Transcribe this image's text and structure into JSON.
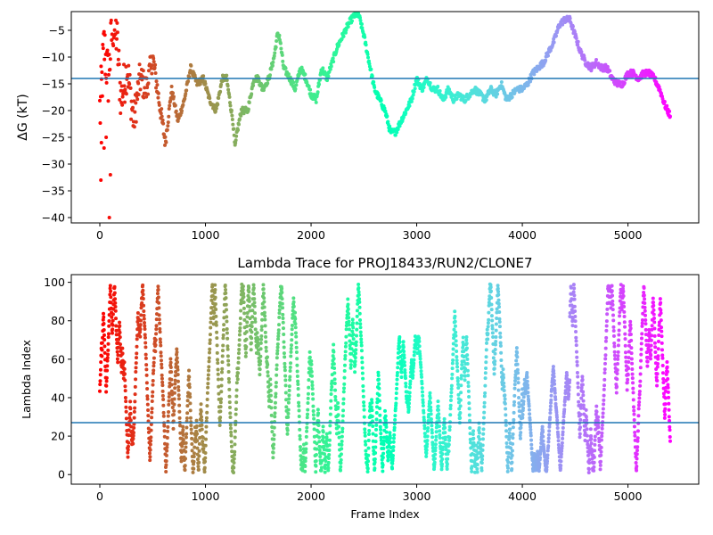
{
  "chart_data": [
    {
      "type": "scatter",
      "title": "",
      "xlabel": "",
      "ylabel": "ΔG (kT)",
      "xlim": [
        -270,
        5670
      ],
      "ylim": [
        -41,
        -1.5
      ],
      "xticks": [
        0,
        1000,
        2000,
        3000,
        4000,
        5000
      ],
      "xtick_labels": [
        "0",
        "1000",
        "2000",
        "3000",
        "4000",
        "5000"
      ],
      "yticks": [
        -40,
        -35,
        -30,
        -25,
        -20,
        -15,
        -10,
        -5
      ],
      "ytick_labels": [
        "−40",
        "−35",
        "−30",
        "−25",
        "−20",
        "−15",
        "−10",
        "−5"
      ],
      "hline": -14,
      "hline_color": "#1f77b4",
      "colormap": "rainbow",
      "series": [
        {
          "x": [
            5,
            40,
            80,
            120,
            160,
            200,
            260,
            320,
            380,
            440,
            500,
            560,
            620,
            680,
            740,
            800,
            860,
            920,
            980,
            1040,
            1100,
            1160,
            1200,
            1260,
            1280,
            1300,
            1340,
            1400,
            1460,
            1500,
            1540,
            1600,
            1650,
            1680,
            1700,
            1740,
            1800,
            1850,
            1900,
            1950,
            2000,
            2050,
            2100,
            2150,
            2200,
            2250,
            2300,
            2350,
            2380,
            2420,
            2450,
            2500,
            2560,
            2600,
            2650,
            2700,
            2750,
            2800,
            2850,
            2900,
            2950,
            3000,
            3050,
            3100,
            3150,
            3200,
            3250,
            3300,
            3350,
            3400,
            3450,
            3500,
            3550,
            3600,
            3650,
            3700,
            3750,
            3800,
            3850,
            3900,
            3950,
            4000,
            4050,
            4100,
            4150,
            4200,
            4250,
            4300,
            4350,
            4400,
            4450,
            4500,
            4550,
            4600,
            4650,
            4700,
            4750,
            4800,
            4850,
            4900,
            4950,
            5000,
            5050,
            5100,
            5150,
            5200,
            5250,
            5300,
            5350,
            5400
          ],
          "y": [
            -20,
            -8,
            -14,
            -4,
            -6,
            -18,
            -12,
            -22,
            -14,
            -16,
            -10,
            -18,
            -26,
            -16,
            -22,
            -18,
            -12,
            -15,
            -14,
            -18,
            -20,
            -14,
            -14,
            -22,
            -27,
            -24,
            -20,
            -20,
            -14,
            -14,
            -16,
            -14,
            -10,
            -6,
            -6,
            -12,
            -14,
            -16,
            -12,
            -14,
            -17,
            -18,
            -12,
            -14,
            -11,
            -8,
            -6,
            -4,
            -3,
            -2,
            -2,
            -6,
            -12,
            -16,
            -18,
            -20,
            -24,
            -24,
            -22,
            -20,
            -18,
            -14,
            -16,
            -14,
            -16,
            -16,
            -18,
            -16,
            -18,
            -17,
            -18,
            -17,
            -16,
            -17,
            -18,
            -16,
            -17,
            -15,
            -18,
            -17,
            -16,
            -16,
            -15,
            -13,
            -12,
            -11,
            -9,
            -7,
            -4,
            -3,
            -3,
            -6,
            -9,
            -11,
            -12,
            -11,
            -12,
            -12,
            -14,
            -15,
            -15,
            -13,
            -13,
            -14,
            -13,
            -13,
            -14,
            -16,
            -19,
            -21
          ]
        }
      ]
    },
    {
      "type": "scatter",
      "title": "Lambda Trace for PROJ18433/RUN2/CLONE7",
      "xlabel": "Frame Index",
      "ylabel": "Lambda Index",
      "xlim": [
        -270,
        5670
      ],
      "ylim": [
        -5,
        104
      ],
      "xticks": [
        0,
        1000,
        2000,
        3000,
        4000,
        5000
      ],
      "xtick_labels": [
        "0",
        "1000",
        "2000",
        "3000",
        "4000",
        "5000"
      ],
      "yticks": [
        0,
        20,
        40,
        60,
        80,
        100
      ],
      "ytick_labels": [
        "0",
        "20",
        "40",
        "60",
        "80",
        "100"
      ],
      "hline": 27,
      "hline_color": "#1f77b4",
      "colormap": "rainbow",
      "frames": 5400
    }
  ]
}
